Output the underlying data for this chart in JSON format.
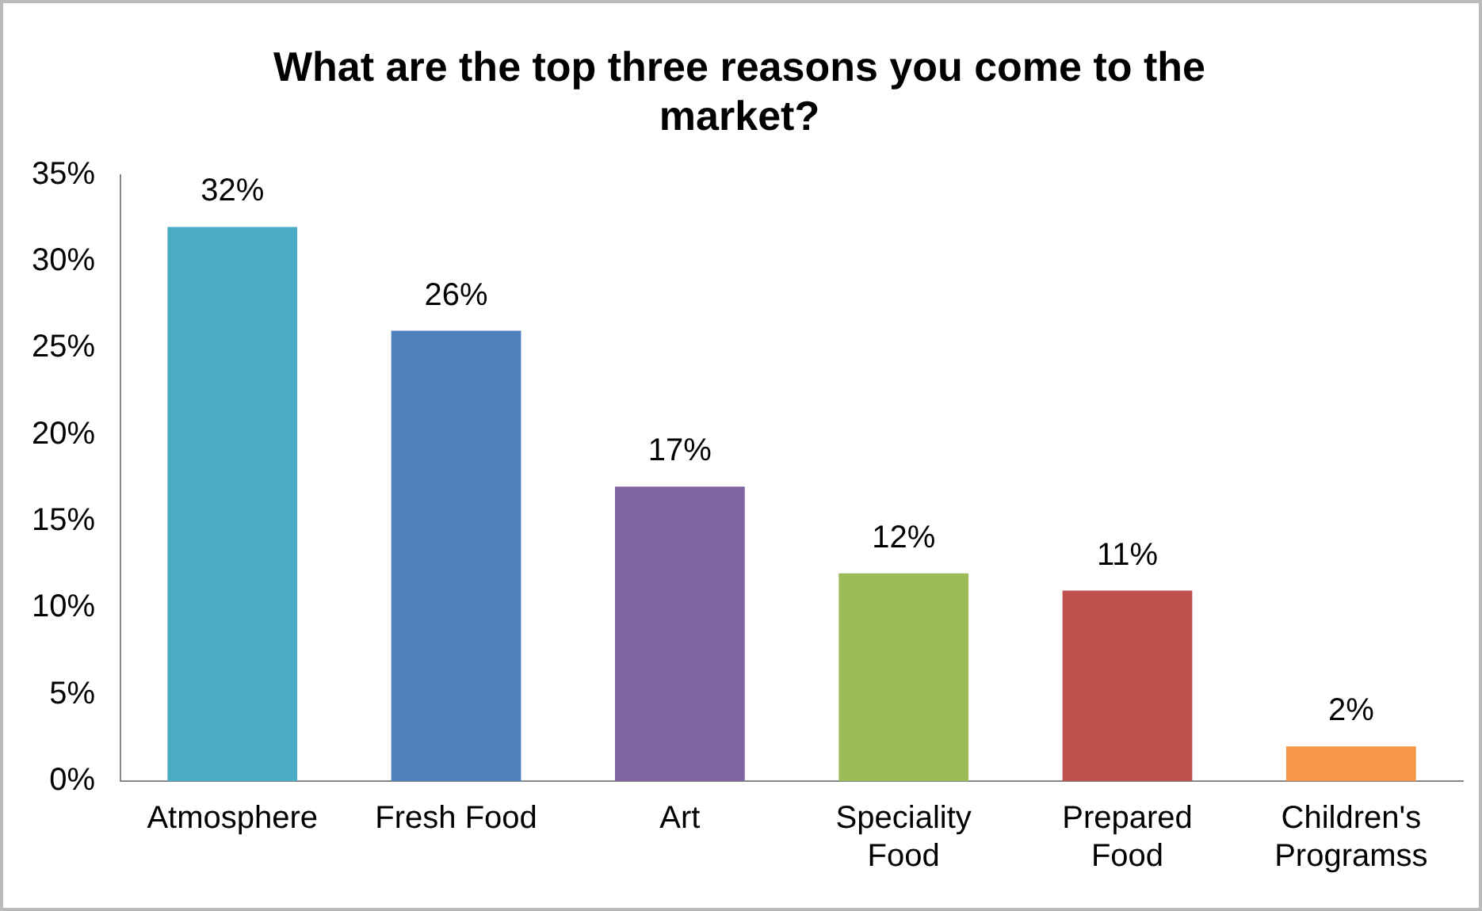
{
  "chart_data": {
    "type": "bar",
    "title": "What are the top three reasons you come to the market?",
    "categories": [
      "Atmosphere",
      "Fresh Food",
      "Art",
      "Speciality Food",
      "Prepared Food",
      "Children's Programss"
    ],
    "values": [
      32,
      26,
      17,
      12,
      11,
      2
    ],
    "colors": [
      "#4bacc6",
      "#4f81bd",
      "#8064a2",
      "#9bbb59",
      "#c0504d",
      "#f79646"
    ],
    "value_labels": [
      "32%",
      "26%",
      "17%",
      "12%",
      "11%",
      "2%"
    ],
    "ylim": [
      0,
      35
    ],
    "yticks": [
      {
        "value": 0,
        "label": "0%"
      },
      {
        "value": 5,
        "label": "5%"
      },
      {
        "value": 10,
        "label": "10%"
      },
      {
        "value": 15,
        "label": "15%"
      },
      {
        "value": 20,
        "label": "20%"
      },
      {
        "value": 25,
        "label": "25%"
      },
      {
        "value": 30,
        "label": "30%"
      },
      {
        "value": 35,
        "label": "35%"
      }
    ],
    "grid": false,
    "legend": false
  }
}
